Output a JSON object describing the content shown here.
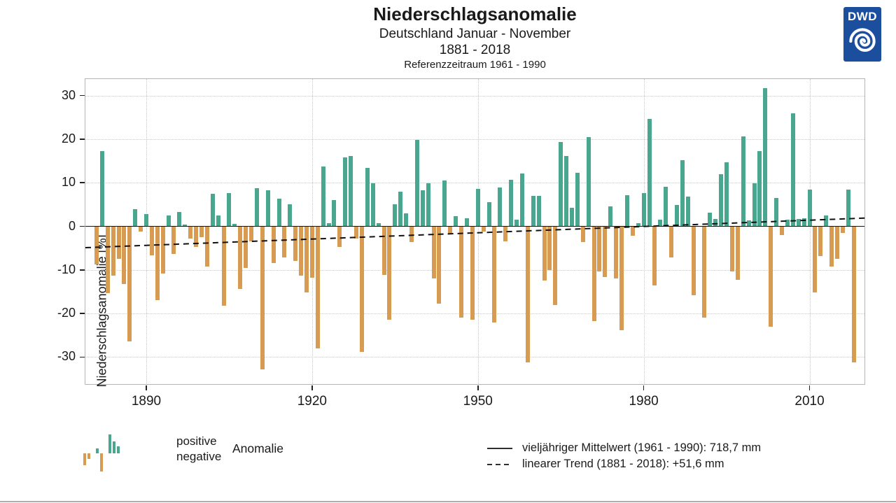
{
  "header": {
    "title": "Niederschlagsanomalie",
    "subtitle1": "Deutschland Januar - November",
    "subtitle2": "1881 - 2018",
    "subtitle3": "Referenzzeitraum 1961 - 1990"
  },
  "logo": {
    "text": "DWD",
    "background_color": "#1C4E9E"
  },
  "colors": {
    "positive_bar": "#4AA78F",
    "negative_bar": "#D89B52",
    "grid": "#c9c9c9",
    "axis_frame": "#b5b5b5",
    "line": "#111111"
  },
  "y_axis": {
    "label": "Niederschlagsanomalie [%]",
    "ticks": [
      30,
      20,
      10,
      0,
      -10,
      -20,
      -30
    ]
  },
  "x_axis": {
    "ticks": [
      1890,
      1920,
      1950,
      1980,
      2010
    ]
  },
  "legend": {
    "positive_label": "positive",
    "negative_label": "negative",
    "anomalie_label": "Anomalie",
    "mean_label": "vieljähriger Mittelwert (1961 - 1990): 718,7 mm",
    "trend_label": "linearer Trend (1881 - 2018): +51,6 mm",
    "icon_bars": [
      -17,
      -8,
      0,
      7,
      -26,
      0,
      27,
      17,
      10
    ]
  },
  "chart_data": {
    "type": "bar",
    "title": "Niederschlagsanomalie",
    "subtitle": "Deutschland Januar - November 1881 - 2018, Referenzzeitraum 1961 - 1990",
    "xlabel": "",
    "ylabel": "Niederschlagsanomalie [%]",
    "ylim": [
      -35,
      33
    ],
    "x_start": 1881,
    "x_end": 2018,
    "grid": true,
    "mean_1961_1990_mm": "718,7",
    "linear_trend_mm": "+51,6",
    "trend_line_pct": {
      "start_1881": -4.9,
      "end_2018": 1.9
    },
    "values": [
      -8.7,
      17.3,
      -15.3,
      -11.3,
      -7.4,
      -13.3,
      -26.4,
      3.9,
      -1.2,
      2.8,
      -6.7,
      -17.0,
      -10.9,
      2.5,
      -6.3,
      3.3,
      0.4,
      -2.8,
      -4.7,
      -2.5,
      -9.2,
      7.5,
      2.5,
      -18.3,
      7.6,
      0.5,
      -14.3,
      -9.5,
      -3.4,
      8.7,
      -32.8,
      8.2,
      -8.4,
      6.3,
      -7.1,
      5.1,
      -7.9,
      -11.3,
      -15.1,
      -11.8,
      -28.0,
      13.8,
      0.7,
      6.0,
      -4.7,
      15.9,
      16.2,
      -2.8,
      -28.8,
      13.4,
      9.9,
      0.8,
      -11.1,
      -21.5,
      5.1,
      8.0,
      3.0,
      -3.6,
      19.9,
      8.2,
      9.9,
      -11.9,
      -17.8,
      10.6,
      -1.7,
      2.3,
      -21.0,
      1.8,
      -21.5,
      8.6,
      -1.2,
      5.6,
      -22.1,
      8.9,
      -3.4,
      10.7,
      1.6,
      12.2,
      -31.2,
      7.0,
      7.0,
      -12.5,
      -10.0,
      -18.1,
      19.4,
      16.2,
      4.3,
      12.3,
      -3.6,
      20.4,
      -21.8,
      -10.3,
      -11.6,
      4.5,
      -11.9,
      -23.9,
      7.1,
      -2.2,
      0.7,
      7.7,
      24.6,
      -13.6,
      1.5,
      9.1,
      -7.1,
      4.9,
      15.2,
      6.9,
      -15.9,
      0.0,
      -21.0,
      3.1,
      1.7,
      11.9,
      14.7,
      -10.3,
      -12.3,
      20.6,
      1.4,
      9.8,
      17.3,
      31.7,
      -23.1,
      6.5,
      -2.0,
      1.5,
      26.0,
      1.7,
      1.9,
      8.4,
      -15.1,
      -6.8,
      2.5,
      -9.2,
      -7.4,
      -1.5,
      8.4,
      -31.3
    ]
  }
}
